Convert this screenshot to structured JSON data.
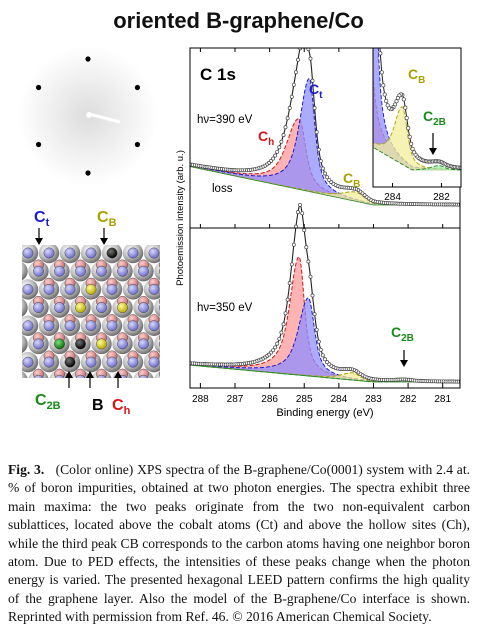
{
  "figure": {
    "title": "oriented B-graphene/Co",
    "model_labels": {
      "ct": "C",
      "ct_sub": "t",
      "cb": "C",
      "cb_sub": "B",
      "c2b": "C",
      "c2b_sub": "2B",
      "b": "B",
      "ch": "C",
      "ch_sub": "h"
    },
    "colors": {
      "ct": "#1a1ad0",
      "cb": "#a8a200",
      "ch": "#d01515",
      "c2b": "#1a8a1a",
      "fill_ct": "#8f8fff",
      "fill_cb": "#f2ee9a",
      "fill_ch": "#ff9a9a",
      "fill_c2b": "#a6e3a6"
    }
  },
  "chart_data": [
    {
      "type": "line",
      "title": "C 1s",
      "xlabel": "Binding energy (eV)",
      "ylabel": "Photoemission intensity (arb. u.)",
      "xlim": [
        280.5,
        288.3
      ],
      "x_reversed": true,
      "x_ticks": [
        288,
        287,
        286,
        285,
        284,
        283,
        282,
        281
      ],
      "panels": [
        {
          "photon_energy_label": "hν=390 eV",
          "annotation": "loss",
          "peaks": [
            {
              "name": "C",
              "sub": "t",
              "center": 284.85,
              "height": 1.0
            },
            {
              "name": "C",
              "sub": "h",
              "center": 285.15,
              "height": 0.65
            },
            {
              "name": "C",
              "sub": "B",
              "center": 283.5,
              "height": 0.07
            }
          ]
        },
        {
          "photon_energy_label": "hν=350 eV",
          "peaks": [
            {
              "name": "C",
              "sub": "h",
              "center": 285.15,
              "height": 1.0
            },
            {
              "name": "C",
              "sub": "t",
              "center": 284.88,
              "height": 0.66
            },
            {
              "name": "C",
              "sub": "B",
              "center": 283.6,
              "height": 0.05
            },
            {
              "name": "C",
              "sub": "2B",
              "center": 282.1,
              "height": 0.004
            }
          ]
        }
      ],
      "inset": {
        "x_ticks": [
          284,
          282
        ],
        "peaks": [
          {
            "name": "C",
            "sub": "B",
            "center": 283.6
          },
          {
            "name": "C",
            "sub": "2B",
            "center": 282.1
          }
        ]
      }
    }
  ],
  "caption": {
    "label": "Fig. 3.",
    "text": "(Color online) XPS spectra of the B-graphene/Co(0001) system with 2.4 at. % of boron impurities, obtained at two photon energies. The spectra exhibit three main maxima: the two peaks originate from the two non-equivalent carbon sublattices, located above the cobalt atoms (Ct) and above the hollow sites (Ch), while the third peak CB corresponds to the carbon atoms having one neighbor boron atom. Due to PED effects, the intensities of these peaks change when the photon energy is varied. The presented hexagonal LEED pattern confirms the high quality of the graphene layer. Also the model of the B-graphene/Co interface is shown. Reprinted with permission from Ref. 46. © 2016 American Chemical Society."
  }
}
